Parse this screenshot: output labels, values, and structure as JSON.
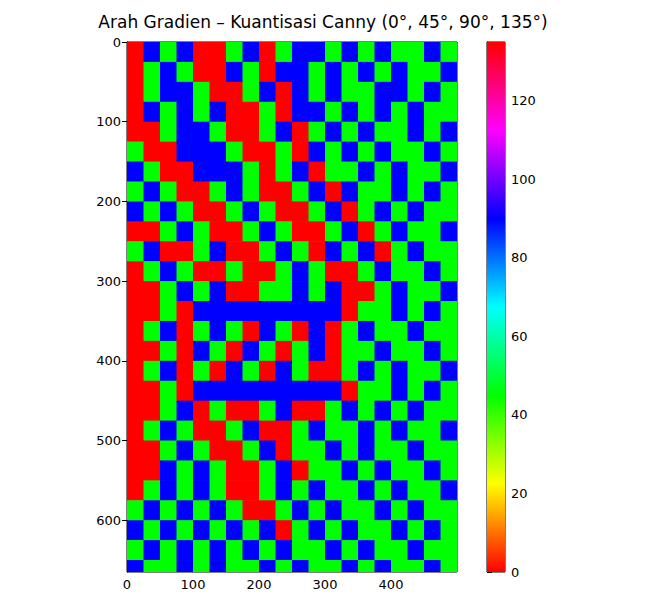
{
  "chart_data": {
    "type": "heatmap",
    "title": "Arah Gradien – Kuantisasi Canny (0°, 45°, 90°, 135°)",
    "x_edges": [
      0,
      25,
      50,
      75,
      100,
      125,
      150,
      175,
      200,
      225,
      250,
      275,
      300,
      325,
      350,
      375,
      400,
      425,
      450,
      475,
      500
    ],
    "y_edges": [
      0,
      25,
      50,
      75,
      100,
      125,
      150,
      175,
      200,
      225,
      250,
      275,
      300,
      325,
      350,
      375,
      400,
      425,
      450,
      475,
      500,
      525,
      550,
      575,
      600,
      625,
      650,
      665
    ],
    "cells": [
      [
        0,
        90,
        45,
        90,
        0,
        135,
        45,
        90,
        0,
        45,
        90,
        90,
        45,
        90,
        45,
        90,
        45,
        45,
        90,
        45
      ],
      [
        0,
        45,
        90,
        45,
        135,
        0,
        90,
        45,
        0,
        90,
        90,
        45,
        90,
        45,
        90,
        45,
        90,
        45,
        45,
        90
      ],
      [
        0,
        45,
        90,
        90,
        45,
        135,
        0,
        45,
        90,
        0,
        90,
        45,
        90,
        45,
        45,
        90,
        90,
        45,
        90,
        45
      ],
      [
        0,
        90,
        45,
        90,
        45,
        90,
        135,
        0,
        45,
        0,
        90,
        90,
        45,
        90,
        45,
        90,
        45,
        90,
        45,
        45
      ],
      [
        135,
        0,
        45,
        90,
        90,
        45,
        135,
        0,
        45,
        90,
        0,
        45,
        90,
        45,
        90,
        45,
        45,
        90,
        45,
        90
      ],
      [
        45,
        135,
        0,
        90,
        90,
        90,
        45,
        0,
        135,
        45,
        0,
        90,
        45,
        90,
        45,
        90,
        45,
        45,
        90,
        45
      ],
      [
        90,
        45,
        135,
        0,
        90,
        90,
        90,
        45,
        0,
        45,
        90,
        0,
        45,
        45,
        90,
        45,
        90,
        45,
        45,
        90
      ],
      [
        45,
        90,
        45,
        135,
        0,
        45,
        90,
        45,
        135,
        0,
        45,
        90,
        0,
        90,
        45,
        45,
        90,
        45,
        90,
        45
      ],
      [
        90,
        45,
        90,
        45,
        135,
        0,
        45,
        90,
        45,
        0,
        135,
        45,
        90,
        0,
        45,
        90,
        45,
        90,
        45,
        45
      ],
      [
        135,
        0,
        45,
        90,
        45,
        135,
        0,
        45,
        90,
        45,
        0,
        135,
        45,
        90,
        0,
        45,
        90,
        45,
        45,
        90
      ],
      [
        45,
        90,
        135,
        0,
        45,
        90,
        135,
        0,
        45,
        90,
        45,
        0,
        90,
        45,
        90,
        0,
        45,
        90,
        45,
        45
      ],
      [
        0,
        45,
        90,
        45,
        135,
        0,
        45,
        135,
        0,
        45,
        90,
        45,
        0,
        135,
        45,
        90,
        45,
        45,
        90,
        45
      ],
      [
        135,
        0,
        45,
        90,
        45,
        90,
        135,
        0,
        45,
        45,
        90,
        45,
        90,
        0,
        135,
        45,
        90,
        45,
        45,
        90
      ],
      [
        0,
        135,
        45,
        135,
        90,
        90,
        90,
        90,
        90,
        90,
        90,
        90,
        90,
        0,
        45,
        45,
        90,
        45,
        90,
        45
      ],
      [
        0,
        45,
        90,
        135,
        45,
        90,
        45,
        0,
        90,
        45,
        135,
        90,
        135,
        45,
        90,
        45,
        45,
        90,
        45,
        45
      ],
      [
        135,
        0,
        45,
        0,
        90,
        45,
        135,
        90,
        45,
        0,
        45,
        90,
        0,
        45,
        45,
        90,
        45,
        45,
        90,
        45
      ],
      [
        0,
        45,
        90,
        135,
        45,
        0,
        90,
        45,
        135,
        90,
        45,
        0,
        135,
        45,
        90,
        45,
        90,
        45,
        45,
        90
      ],
      [
        0,
        135,
        45,
        0,
        90,
        90,
        90,
        90,
        90,
        90,
        90,
        90,
        90,
        0,
        45,
        45,
        90,
        45,
        90,
        45
      ],
      [
        135,
        0,
        45,
        90,
        0,
        45,
        135,
        0,
        45,
        90,
        135,
        0,
        45,
        90,
        45,
        90,
        45,
        90,
        45,
        45
      ],
      [
        0,
        45,
        90,
        45,
        135,
        0,
        45,
        90,
        0,
        135,
        45,
        90,
        45,
        45,
        90,
        45,
        90,
        45,
        45,
        90
      ],
      [
        0,
        135,
        45,
        90,
        45,
        0,
        135,
        45,
        90,
        0,
        45,
        45,
        90,
        45,
        90,
        45,
        45,
        90,
        45,
        45
      ],
      [
        135,
        0,
        90,
        45,
        90,
        45,
        0,
        135,
        45,
        90,
        0,
        45,
        45,
        90,
        45,
        90,
        45,
        45,
        90,
        45
      ],
      [
        0,
        45,
        90,
        45,
        90,
        45,
        135,
        0,
        45,
        90,
        45,
        90,
        45,
        45,
        90,
        45,
        90,
        45,
        45,
        90
      ],
      [
        45,
        90,
        45,
        90,
        45,
        90,
        45,
        135,
        0,
        45,
        90,
        45,
        90,
        45,
        45,
        90,
        45,
        90,
        45,
        45
      ],
      [
        90,
        45,
        90,
        45,
        90,
        45,
        90,
        45,
        90,
        135,
        45,
        90,
        45,
        90,
        45,
        45,
        90,
        45,
        90,
        45
      ],
      [
        45,
        90,
        45,
        90,
        45,
        90,
        45,
        90,
        45,
        90,
        45,
        45,
        90,
        45,
        90,
        45,
        45,
        90,
        45,
        45
      ],
      [
        90,
        45,
        45,
        90,
        45,
        90,
        45,
        45,
        90,
        45,
        90,
        45,
        45,
        90,
        45,
        90,
        45,
        45,
        90,
        45
      ]
    ],
    "xlim": [
      0,
      500
    ],
    "ylim": [
      665,
      0
    ],
    "xticks": [
      0,
      100,
      200,
      300,
      400
    ],
    "yticks": [
      0,
      100,
      200,
      300,
      400,
      500,
      600
    ],
    "colorbar": {
      "range": [
        0,
        135
      ],
      "ticks": [
        0,
        20,
        40,
        60,
        80,
        100,
        120
      ]
    },
    "grid": false
  }
}
